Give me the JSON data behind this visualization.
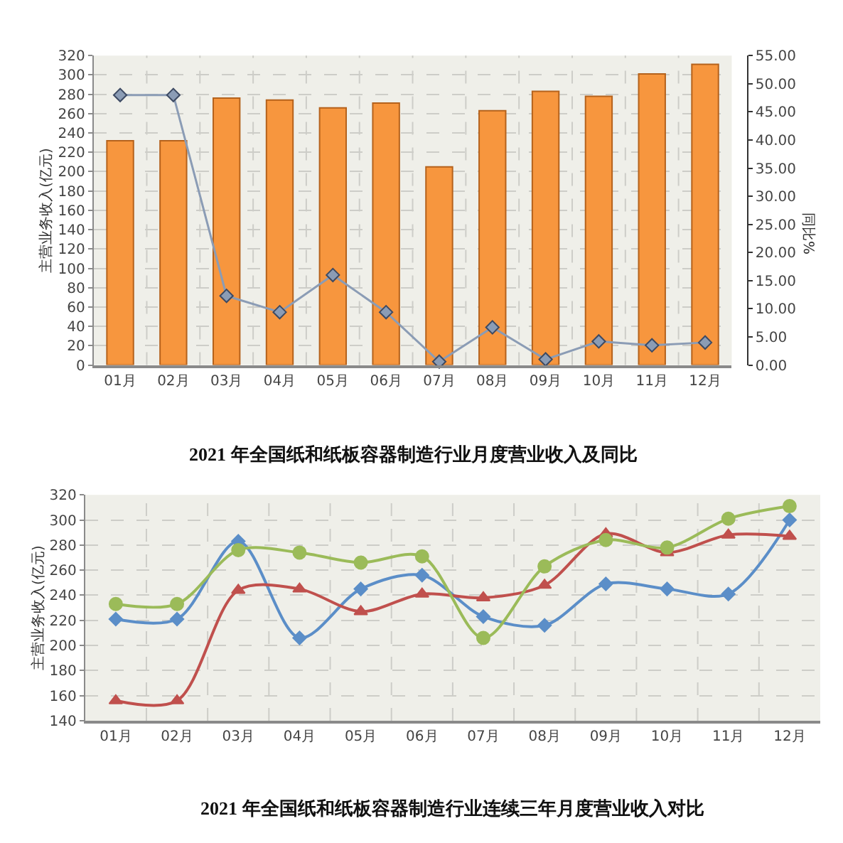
{
  "chart_data": [
    {
      "type": "bar",
      "title": "2021 年全国纸和纸板容器制造行业月度营业收入及同比",
      "ylabel": "主营业务收入(亿元)",
      "y2label": "同比%",
      "categories": [
        "01月",
        "02月",
        "03月",
        "04月",
        "05月",
        "06月",
        "07月",
        "08月",
        "09月",
        "10月",
        "11月",
        "12月"
      ],
      "series": [
        {
          "type": "bar",
          "color": "#f7963e",
          "values": [
            232,
            232,
            276,
            274,
            266,
            271,
            205,
            263,
            283,
            278,
            301,
            311
          ]
        },
        {
          "type": "line",
          "axis": "y2",
          "marker": "diamond",
          "color": "#8b9cb5",
          "values": [
            48.0,
            48.0,
            12.3,
            9.4,
            16.0,
            9.4,
            0.6,
            6.7,
            1.0,
            4.2,
            3.5,
            4.0
          ]
        }
      ],
      "ylim": [
        0,
        320
      ],
      "yticks": [
        0,
        20,
        40,
        60,
        80,
        100,
        120,
        140,
        160,
        180,
        200,
        220,
        240,
        260,
        280,
        300,
        320
      ],
      "y2lim": [
        0,
        55
      ],
      "y2ticks": [
        {
          "value": 0,
          "label": "0.00"
        },
        {
          "value": 5,
          "label": "5.00"
        },
        {
          "value": 10,
          "label": "10.00"
        },
        {
          "value": 15,
          "label": "15.00"
        },
        {
          "value": 20,
          "label": "20.00"
        },
        {
          "value": 25,
          "label": "25.00"
        },
        {
          "value": 30,
          "label": "30.00"
        },
        {
          "value": 35,
          "label": "35.00"
        },
        {
          "value": 40,
          "label": "40.00"
        },
        {
          "value": 45,
          "label": "45.00"
        },
        {
          "value": 50,
          "label": "50.00"
        },
        {
          "value": 55,
          "label": "55.00"
        }
      ],
      "grid": true
    },
    {
      "type": "line",
      "title": "2021 年全国纸和纸板容器制造行业连续三年月度营业收入对比",
      "ylabel": "主营业务收入(亿元)",
      "categories": [
        "01月",
        "02月",
        "03月",
        "04月",
        "05月",
        "06月",
        "07月",
        "08月",
        "09月",
        "10月",
        "11月",
        "12月"
      ],
      "series": [
        {
          "marker": "diamond",
          "color": "#5b8ec8",
          "values": [
            221,
            221,
            283,
            206,
            245,
            256,
            223,
            216,
            249,
            245,
            241,
            300
          ]
        },
        {
          "marker": "triangle",
          "color": "#c0504d",
          "values": [
            156,
            156,
            244,
            245,
            227,
            241,
            238,
            248,
            289,
            274,
            288,
            287
          ]
        },
        {
          "marker": "circle",
          "color": "#9bbb59",
          "values": [
            233,
            233,
            276,
            274,
            266,
            271,
            206,
            263,
            284,
            278,
            301,
            311
          ]
        }
      ],
      "ylim": [
        140,
        320
      ],
      "yticks": [
        140,
        160,
        180,
        200,
        220,
        240,
        260,
        280,
        300,
        320
      ],
      "grid": true
    }
  ]
}
